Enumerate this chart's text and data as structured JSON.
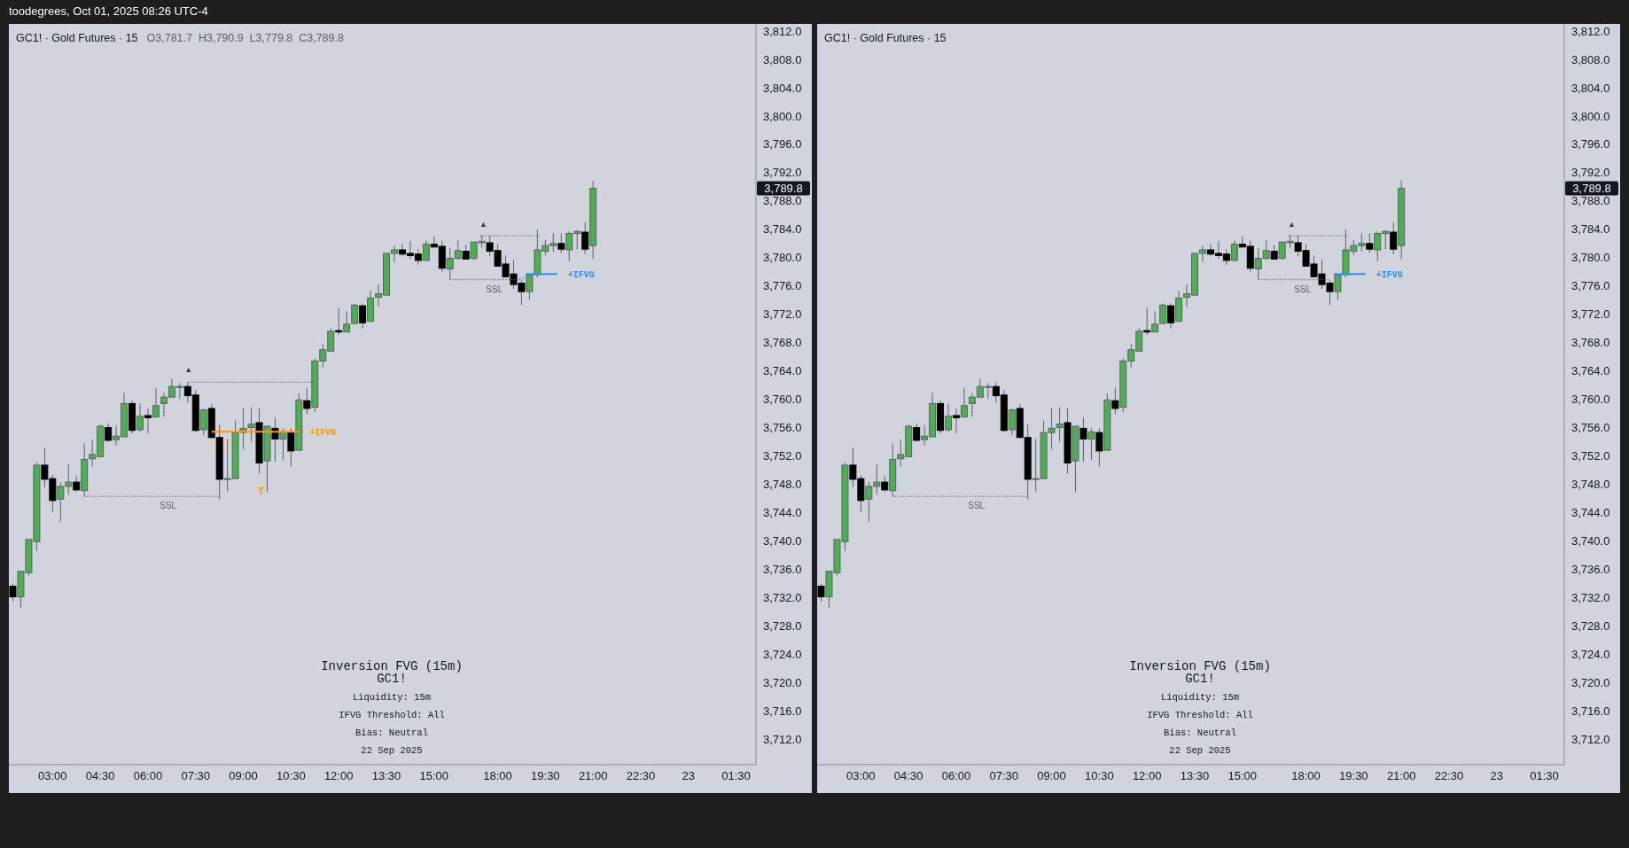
{
  "chart_data": [
    {
      "type": "candlestick",
      "title": "GC1! · Gold Futures · 15",
      "subtitle": "O3,781.7  H3,790.9  L3,779.8  C3,789.8",
      "categories": [
        null,
        null,
        null,
        null,
        null,
        "03:00",
        null,
        null,
        null,
        null,
        null,
        "04:30",
        null,
        null,
        null,
        null,
        null,
        "06:00",
        null,
        null,
        null,
        null,
        null,
        "07:30",
        null,
        null,
        null,
        null,
        null,
        "09:00",
        null,
        null,
        null,
        null,
        null,
        "10:30",
        null,
        null,
        null,
        null,
        null,
        "12:00",
        null,
        null,
        null,
        null,
        null,
        "13:30",
        null,
        null,
        null,
        null,
        null,
        "15:00",
        null,
        null,
        null,
        null,
        null,
        null,
        null,
        "18:00",
        null,
        null,
        null,
        null,
        null,
        "19:30",
        null,
        null,
        null,
        null,
        null,
        "21:00",
        null,
        null,
        null,
        null,
        null,
        "22:30",
        null,
        null,
        null,
        null,
        null,
        "23",
        null,
        null,
        null,
        null,
        null,
        "01:30",
        null,
        null
      ],
      "ohlc": [
        [
          3733.6,
          3734.0,
          3731.5,
          3732.1
        ],
        [
          3732.1,
          3735.8,
          3730.6,
          3735.7
        ],
        [
          3735.5,
          3740.2,
          3735.1,
          3740.2
        ],
        [
          3739.9,
          3751.1,
          3738.6,
          3750.7
        ],
        [
          3750.7,
          3753.2,
          3747.6,
          3748.7
        ],
        [
          3748.8,
          3749.3,
          3744.1,
          3745.7
        ],
        [
          3745.9,
          3748.3,
          3742.7,
          3747.7
        ],
        [
          3747.7,
          3750.8,
          3746.6,
          3748.3
        ],
        [
          3748.3,
          3749.2,
          3746.9,
          3747.2
        ],
        [
          3747.1,
          3753.8,
          3746.2,
          3751.5
        ],
        [
          3751.6,
          3754.3,
          3750.5,
          3752.2
        ],
        [
          3751.9,
          3756.4,
          3751.9,
          3756.2
        ],
        [
          3756.0,
          3756.6,
          3754.0,
          3754.2
        ],
        [
          3754.3,
          3756.3,
          3753.5,
          3754.8
        ],
        [
          3754.7,
          3760.9,
          3754.7,
          3759.4
        ],
        [
          3759.4,
          3759.8,
          3755.2,
          3755.6
        ],
        [
          3755.7,
          3759.4,
          3755.4,
          3757.6
        ],
        [
          3757.7,
          3758.7,
          3755.2,
          3757.4
        ],
        [
          3757.5,
          3761.6,
          3757.5,
          3759.1
        ],
        [
          3759.4,
          3760.9,
          3757.5,
          3760.3
        ],
        [
          3760.3,
          3762.9,
          3760.3,
          3761.8
        ],
        [
          3761.8,
          3762.3,
          3760.1,
          3761.8
        ],
        [
          3761.8,
          3762.4,
          3759.5,
          3760.5
        ],
        [
          3760.6,
          3761.3,
          3755.4,
          3755.6
        ],
        [
          3755.7,
          3758.7,
          3754.9,
          3758.5
        ],
        [
          3758.7,
          3759.3,
          3754.5,
          3754.6
        ],
        [
          3754.6,
          3756.4,
          3745.9,
          3748.7
        ],
        [
          3748.8,
          3754.4,
          3747.0,
          3748.8
        ],
        [
          3748.8,
          3757.0,
          3748.8,
          3755.3
        ],
        [
          3755.3,
          3758.8,
          3752.9,
          3755.9
        ],
        [
          3756.0,
          3758.9,
          3754.0,
          3756.5
        ],
        [
          3756.7,
          3758.7,
          3749.5,
          3751.0
        ],
        [
          3751.3,
          3756.2,
          3746.9,
          3756.2
        ],
        [
          3755.9,
          3757.4,
          3751.2,
          3754.4
        ],
        [
          3754.4,
          3755.9,
          3751.4,
          3755.4
        ],
        [
          3755.3,
          3755.9,
          3750.5,
          3752.7
        ],
        [
          3752.8,
          3760.8,
          3752.8,
          3759.9
        ],
        [
          3759.8,
          3761.6,
          3757.9,
          3758.7
        ],
        [
          3758.9,
          3765.8,
          3758.2,
          3765.4
        ],
        [
          3765.4,
          3767.8,
          3764.5,
          3767.0
        ],
        [
          3766.8,
          3770.0,
          3766.8,
          3769.6
        ],
        [
          3769.7,
          3772.9,
          3769.1,
          3769.5
        ],
        [
          3769.5,
          3772.4,
          3769.5,
          3770.6
        ],
        [
          3770.7,
          3773.5,
          3770.6,
          3773.3
        ],
        [
          3773.2,
          3773.5,
          3770.0,
          3770.8
        ],
        [
          3771.0,
          3775.3,
          3771.0,
          3774.3
        ],
        [
          3774.4,
          3776.2,
          3773.1,
          3774.9
        ],
        [
          3774.7,
          3780.6,
          3774.7,
          3780.6
        ],
        [
          3780.6,
          3781.7,
          3779.4,
          3781.1
        ],
        [
          3781.1,
          3781.9,
          3780.2,
          3780.5
        ],
        [
          3780.6,
          3782.3,
          3779.8,
          3780.3
        ],
        [
          3780.5,
          3781.2,
          3779.0,
          3779.6
        ],
        [
          3779.6,
          3782.4,
          3779.6,
          3781.9
        ],
        [
          3781.9,
          3783.0,
          3781.5,
          3781.5
        ],
        [
          3781.6,
          3782.4,
          3778.0,
          3778.5
        ],
        [
          3778.4,
          3781.4,
          3776.9,
          3779.9
        ],
        [
          3779.9,
          3782.4,
          3779.7,
          3781.0
        ],
        [
          3780.9,
          3781.8,
          3779.8,
          3779.8
        ],
        [
          3779.9,
          3782.2,
          3779.7,
          3782.2
        ],
        [
          3782.1,
          3783.1,
          3781.4,
          3782.3
        ],
        [
          3782.1,
          3783.1,
          3780.2,
          3780.9
        ],
        [
          3781.0,
          3781.9,
          3778.8,
          3778.8
        ],
        [
          3779.1,
          3780.3,
          3777.3,
          3777.3
        ],
        [
          3777.7,
          3779.7,
          3775.6,
          3776.2
        ],
        [
          3776.4,
          3776.8,
          3773.3,
          3775.2
        ],
        [
          3775.2,
          3777.6,
          3774.1,
          3777.6
        ],
        [
          3777.6,
          3784.0,
          3777.2,
          3781.1
        ],
        [
          3780.9,
          3782.5,
          3780.3,
          3781.7
        ],
        [
          3781.7,
          3783.4,
          3780.8,
          3782.0
        ],
        [
          3782.0,
          3783.4,
          3780.7,
          3781.2
        ],
        [
          3781.1,
          3783.7,
          3779.5,
          3783.4
        ],
        [
          3783.4,
          3783.9,
          3781.2,
          3783.7
        ],
        [
          3783.6,
          3785.0,
          3780.5,
          3781.2
        ],
        [
          3781.7,
          3790.9,
          3779.8,
          3789.8
        ],
        null,
        null,
        null,
        null,
        null,
        null,
        null,
        null,
        null,
        null,
        null,
        null,
        null,
        null,
        null,
        null,
        null,
        null,
        null,
        null
      ],
      "ylim": [
        3708.4,
        3813.0
      ],
      "yticks": [
        {
          "value": 3712,
          "label": "3,712.0"
        },
        {
          "value": 3716,
          "label": "3,716.0"
        },
        {
          "value": 3720,
          "label": "3,720.0"
        },
        {
          "value": 3724,
          "label": "3,724.0"
        },
        {
          "value": 3728,
          "label": "3,728.0"
        },
        {
          "value": 3732,
          "label": "3,732.0"
        },
        {
          "value": 3736,
          "label": "3,736.0"
        },
        {
          "value": 3740,
          "label": "3,740.0"
        },
        {
          "value": 3744,
          "label": "3,744.0"
        },
        {
          "value": 3748,
          "label": "3,748.0"
        },
        {
          "value": 3752,
          "label": "3,752.0"
        },
        {
          "value": 3756,
          "label": "3,756.0"
        },
        {
          "value": 3760,
          "label": "3,760.0"
        },
        {
          "value": 3764,
          "label": "3,764.0"
        },
        {
          "value": 3768,
          "label": "3,768.0"
        },
        {
          "value": 3772,
          "label": "3,772.0"
        },
        {
          "value": 3776,
          "label": "3,776.0"
        },
        {
          "value": 3780,
          "label": "3,780.0"
        },
        {
          "value": 3784,
          "label": "3,784.0"
        },
        {
          "value": 3788,
          "label": "3,788.0"
        },
        {
          "value": 3792,
          "label": "3,792.0"
        },
        {
          "value": 3796,
          "label": "3,796.0"
        },
        {
          "value": 3800,
          "label": "3,800.0"
        },
        {
          "value": 3804,
          "label": "3,804.0"
        },
        {
          "value": 3808,
          "label": "3,808.0"
        },
        {
          "value": 3812,
          "label": "3,812.0"
        }
      ],
      "ref_lines": [
        {
          "axis": "y",
          "value": 3746.3,
          "label": "SSL",
          "color": "#5d606b",
          "line_style": "dotted"
        },
        {
          "axis": "y",
          "value": 3762.4,
          "color": "#5d606b",
          "line_style": "dotted"
        },
        {
          "axis": "y",
          "value": 3755.4,
          "label": "+IFVG",
          "color": "#ff9800",
          "line_style": "solid"
        },
        {
          "axis": "y",
          "value": 3783.1,
          "color": "#5d606b",
          "line_style": "dotted"
        },
        {
          "axis": "y",
          "value": 3776.9,
          "label": "SSL",
          "color": "#5d606b",
          "line_style": "dotted"
        },
        {
          "axis": "y",
          "value": 3777.7,
          "label": "+IFVG",
          "color": "#2196f3",
          "line_style": "solid"
        }
      ],
      "annotations": [
        "toodegrees, Oct 01, 2025 08:26 UTC-4",
        "Inversion FVG (15m)",
        "GC1!",
        "Liquidity: 15m",
        "IFVG Threshold: All",
        "Bias: Neutral",
        "22 Sep 2025",
        "▲",
        {
          "text": "▲",
          "y": 3783.1
        },
        "T",
        "3,789.8"
      ]
    },
    {
      "type": "candlestick",
      "title": "GC1! · Gold Futures · 15",
      "categories": [
        null,
        null,
        null,
        null,
        null,
        "03:00",
        null,
        null,
        null,
        null,
        null,
        "04:30",
        null,
        null,
        null,
        null,
        null,
        "06:00",
        null,
        null,
        null,
        null,
        null,
        "07:30",
        null,
        null,
        null,
        null,
        null,
        "09:00",
        null,
        null,
        null,
        null,
        null,
        "10:30",
        null,
        null,
        null,
        null,
        null,
        "12:00",
        null,
        null,
        null,
        null,
        null,
        "13:30",
        null,
        null,
        null,
        null,
        null,
        "15:00",
        null,
        null,
        null,
        null,
        null,
        null,
        null,
        "18:00",
        null,
        null,
        null,
        null,
        null,
        "19:30",
        null,
        null,
        null,
        null,
        null,
        "21:00",
        null,
        null,
        null,
        null,
        null,
        "22:30",
        null,
        null,
        null,
        null,
        null,
        "23",
        null,
        null,
        null,
        null,
        null,
        "01:30",
        null,
        null
      ],
      "ohlc": [
        [
          3733.6,
          3734.0,
          3731.5,
          3732.1
        ],
        [
          3732.1,
          3735.8,
          3730.6,
          3735.7
        ],
        [
          3735.5,
          3740.2,
          3735.1,
          3740.2
        ],
        [
          3739.9,
          3751.1,
          3738.6,
          3750.7
        ],
        [
          3750.7,
          3753.2,
          3747.6,
          3748.7
        ],
        [
          3748.8,
          3749.3,
          3744.1,
          3745.7
        ],
        [
          3745.9,
          3748.3,
          3742.7,
          3747.7
        ],
        [
          3747.7,
          3750.8,
          3746.6,
          3748.3
        ],
        [
          3748.3,
          3749.2,
          3746.9,
          3747.2
        ],
        [
          3747.1,
          3753.8,
          3746.2,
          3751.5
        ],
        [
          3751.6,
          3754.3,
          3750.5,
          3752.2
        ],
        [
          3751.9,
          3756.4,
          3751.9,
          3756.2
        ],
        [
          3756.0,
          3756.6,
          3754.0,
          3754.2
        ],
        [
          3754.3,
          3756.3,
          3753.5,
          3754.8
        ],
        [
          3754.7,
          3760.9,
          3754.7,
          3759.4
        ],
        [
          3759.4,
          3759.8,
          3755.2,
          3755.6
        ],
        [
          3755.7,
          3759.4,
          3755.4,
          3757.6
        ],
        [
          3757.7,
          3758.7,
          3755.2,
          3757.4
        ],
        [
          3757.5,
          3761.6,
          3757.5,
          3759.1
        ],
        [
          3759.4,
          3760.9,
          3757.5,
          3760.3
        ],
        [
          3760.3,
          3762.9,
          3760.3,
          3761.8
        ],
        [
          3761.8,
          3762.3,
          3760.1,
          3761.8
        ],
        [
          3761.8,
          3762.4,
          3759.5,
          3760.5
        ],
        [
          3760.6,
          3761.3,
          3755.4,
          3755.6
        ],
        [
          3755.7,
          3758.7,
          3754.9,
          3758.5
        ],
        [
          3758.7,
          3759.3,
          3754.5,
          3754.6
        ],
        [
          3754.6,
          3756.4,
          3745.9,
          3748.7
        ],
        [
          3748.8,
          3754.4,
          3747.0,
          3748.8
        ],
        [
          3748.8,
          3757.0,
          3748.8,
          3755.3
        ],
        [
          3755.3,
          3758.8,
          3752.9,
          3755.9
        ],
        [
          3756.0,
          3758.9,
          3754.0,
          3756.5
        ],
        [
          3756.7,
          3758.7,
          3749.5,
          3751.0
        ],
        [
          3751.3,
          3756.2,
          3746.9,
          3756.2
        ],
        [
          3755.9,
          3757.4,
          3751.2,
          3754.4
        ],
        [
          3754.4,
          3755.9,
          3751.4,
          3755.4
        ],
        [
          3755.3,
          3755.9,
          3750.5,
          3752.7
        ],
        [
          3752.8,
          3760.8,
          3752.8,
          3759.9
        ],
        [
          3759.8,
          3761.6,
          3757.9,
          3758.7
        ],
        [
          3758.9,
          3765.8,
          3758.2,
          3765.4
        ],
        [
          3765.4,
          3767.8,
          3764.5,
          3767.0
        ],
        [
          3766.8,
          3770.0,
          3766.8,
          3769.6
        ],
        [
          3769.7,
          3772.9,
          3769.1,
          3769.5
        ],
        [
          3769.5,
          3772.4,
          3769.5,
          3770.6
        ],
        [
          3770.7,
          3773.5,
          3770.6,
          3773.3
        ],
        [
          3773.2,
          3773.5,
          3770.0,
          3770.8
        ],
        [
          3771.0,
          3775.3,
          3771.0,
          3774.3
        ],
        [
          3774.4,
          3776.2,
          3773.1,
          3774.9
        ],
        [
          3774.7,
          3780.6,
          3774.7,
          3780.6
        ],
        [
          3780.6,
          3781.7,
          3779.4,
          3781.1
        ],
        [
          3781.1,
          3781.9,
          3780.2,
          3780.5
        ],
        [
          3780.6,
          3782.3,
          3779.8,
          3780.3
        ],
        [
          3780.5,
          3781.2,
          3779.0,
          3779.6
        ],
        [
          3779.6,
          3782.4,
          3779.6,
          3781.9
        ],
        [
          3781.9,
          3783.0,
          3781.5,
          3781.5
        ],
        [
          3781.6,
          3782.4,
          3778.0,
          3778.5
        ],
        [
          3778.4,
          3781.4,
          3776.9,
          3779.9
        ],
        [
          3779.9,
          3782.4,
          3779.7,
          3781.0
        ],
        [
          3780.9,
          3781.8,
          3779.8,
          3779.8
        ],
        [
          3779.9,
          3782.2,
          3779.7,
          3782.2
        ],
        [
          3782.1,
          3783.1,
          3781.4,
          3782.3
        ],
        [
          3782.1,
          3783.1,
          3780.2,
          3780.9
        ],
        [
          3781.0,
          3781.9,
          3778.8,
          3778.8
        ],
        [
          3779.1,
          3780.3,
          3777.3,
          3777.3
        ],
        [
          3777.7,
          3779.7,
          3775.6,
          3776.2
        ],
        [
          3776.4,
          3776.8,
          3773.3,
          3775.2
        ],
        [
          3775.2,
          3777.6,
          3774.1,
          3777.6
        ],
        [
          3777.6,
          3784.0,
          3777.2,
          3781.1
        ],
        [
          3780.9,
          3782.5,
          3780.3,
          3781.7
        ],
        [
          3781.7,
          3783.4,
          3780.8,
          3782.0
        ],
        [
          3782.0,
          3783.4,
          3780.7,
          3781.2
        ],
        [
          3781.1,
          3783.7,
          3779.5,
          3783.4
        ],
        [
          3783.4,
          3783.9,
          3781.2,
          3783.7
        ],
        [
          3783.6,
          3785.0,
          3780.5,
          3781.2
        ],
        [
          3781.7,
          3790.9,
          3779.8,
          3789.8
        ],
        null,
        null,
        null,
        null,
        null,
        null,
        null,
        null,
        null,
        null,
        null,
        null,
        null,
        null,
        null,
        null,
        null,
        null,
        null,
        null
      ],
      "ylim": [
        3708.4,
        3813.0
      ],
      "yticks": [
        {
          "value": 3712,
          "label": "3,712.0"
        },
        {
          "value": 3716,
          "label": "3,716.0"
        },
        {
          "value": 3720,
          "label": "3,720.0"
        },
        {
          "value": 3724,
          "label": "3,724.0"
        },
        {
          "value": 3728,
          "label": "3,728.0"
        },
        {
          "value": 3732,
          "label": "3,732.0"
        },
        {
          "value": 3736,
          "label": "3,736.0"
        },
        {
          "value": 3740,
          "label": "3,740.0"
        },
        {
          "value": 3744,
          "label": "3,744.0"
        },
        {
          "value": 3748,
          "label": "3,748.0"
        },
        {
          "value": 3752,
          "label": "3,752.0"
        },
        {
          "value": 3756,
          "label": "3,756.0"
        },
        {
          "value": 3760,
          "label": "3,760.0"
        },
        {
          "value": 3764,
          "label": "3,764.0"
        },
        {
          "value": 3768,
          "label": "3,768.0"
        },
        {
          "value": 3772,
          "label": "3,772.0"
        },
        {
          "value": 3776,
          "label": "3,776.0"
        },
        {
          "value": 3780,
          "label": "3,780.0"
        },
        {
          "value": 3784,
          "label": "3,784.0"
        },
        {
          "value": 3788,
          "label": "3,788.0"
        },
        {
          "value": 3792,
          "label": "3,792.0"
        },
        {
          "value": 3796,
          "label": "3,796.0"
        },
        {
          "value": 3800,
          "label": "3,800.0"
        },
        {
          "value": 3804,
          "label": "3,804.0"
        },
        {
          "value": 3808,
          "label": "3,808.0"
        },
        {
          "value": 3812,
          "label": "3,812.0"
        }
      ],
      "ref_lines": [
        {
          "axis": "y",
          "value": 3746.3,
          "label": "SSL",
          "color": "#5d606b",
          "line_style": "dotted"
        },
        {
          "axis": "y",
          "value": 3783.1,
          "color": "#5d606b",
          "line_style": "dotted"
        },
        {
          "axis": "y",
          "value": 3776.9,
          "label": "SSL",
          "color": "#5d606b",
          "line_style": "dotted"
        },
        {
          "axis": "y",
          "value": 3777.7,
          "label": "+IFVG",
          "color": "#2196f3",
          "line_style": "solid"
        }
      ],
      "annotations": [
        "Inversion FVG (15m)",
        "GC1!",
        "Liquidity: 15m",
        "IFVG Threshold: All",
        "Bias: Neutral",
        "22 Sep 2025",
        {
          "text": "▲",
          "y": 3783.1
        },
        "3,789.8"
      ]
    }
  ]
}
